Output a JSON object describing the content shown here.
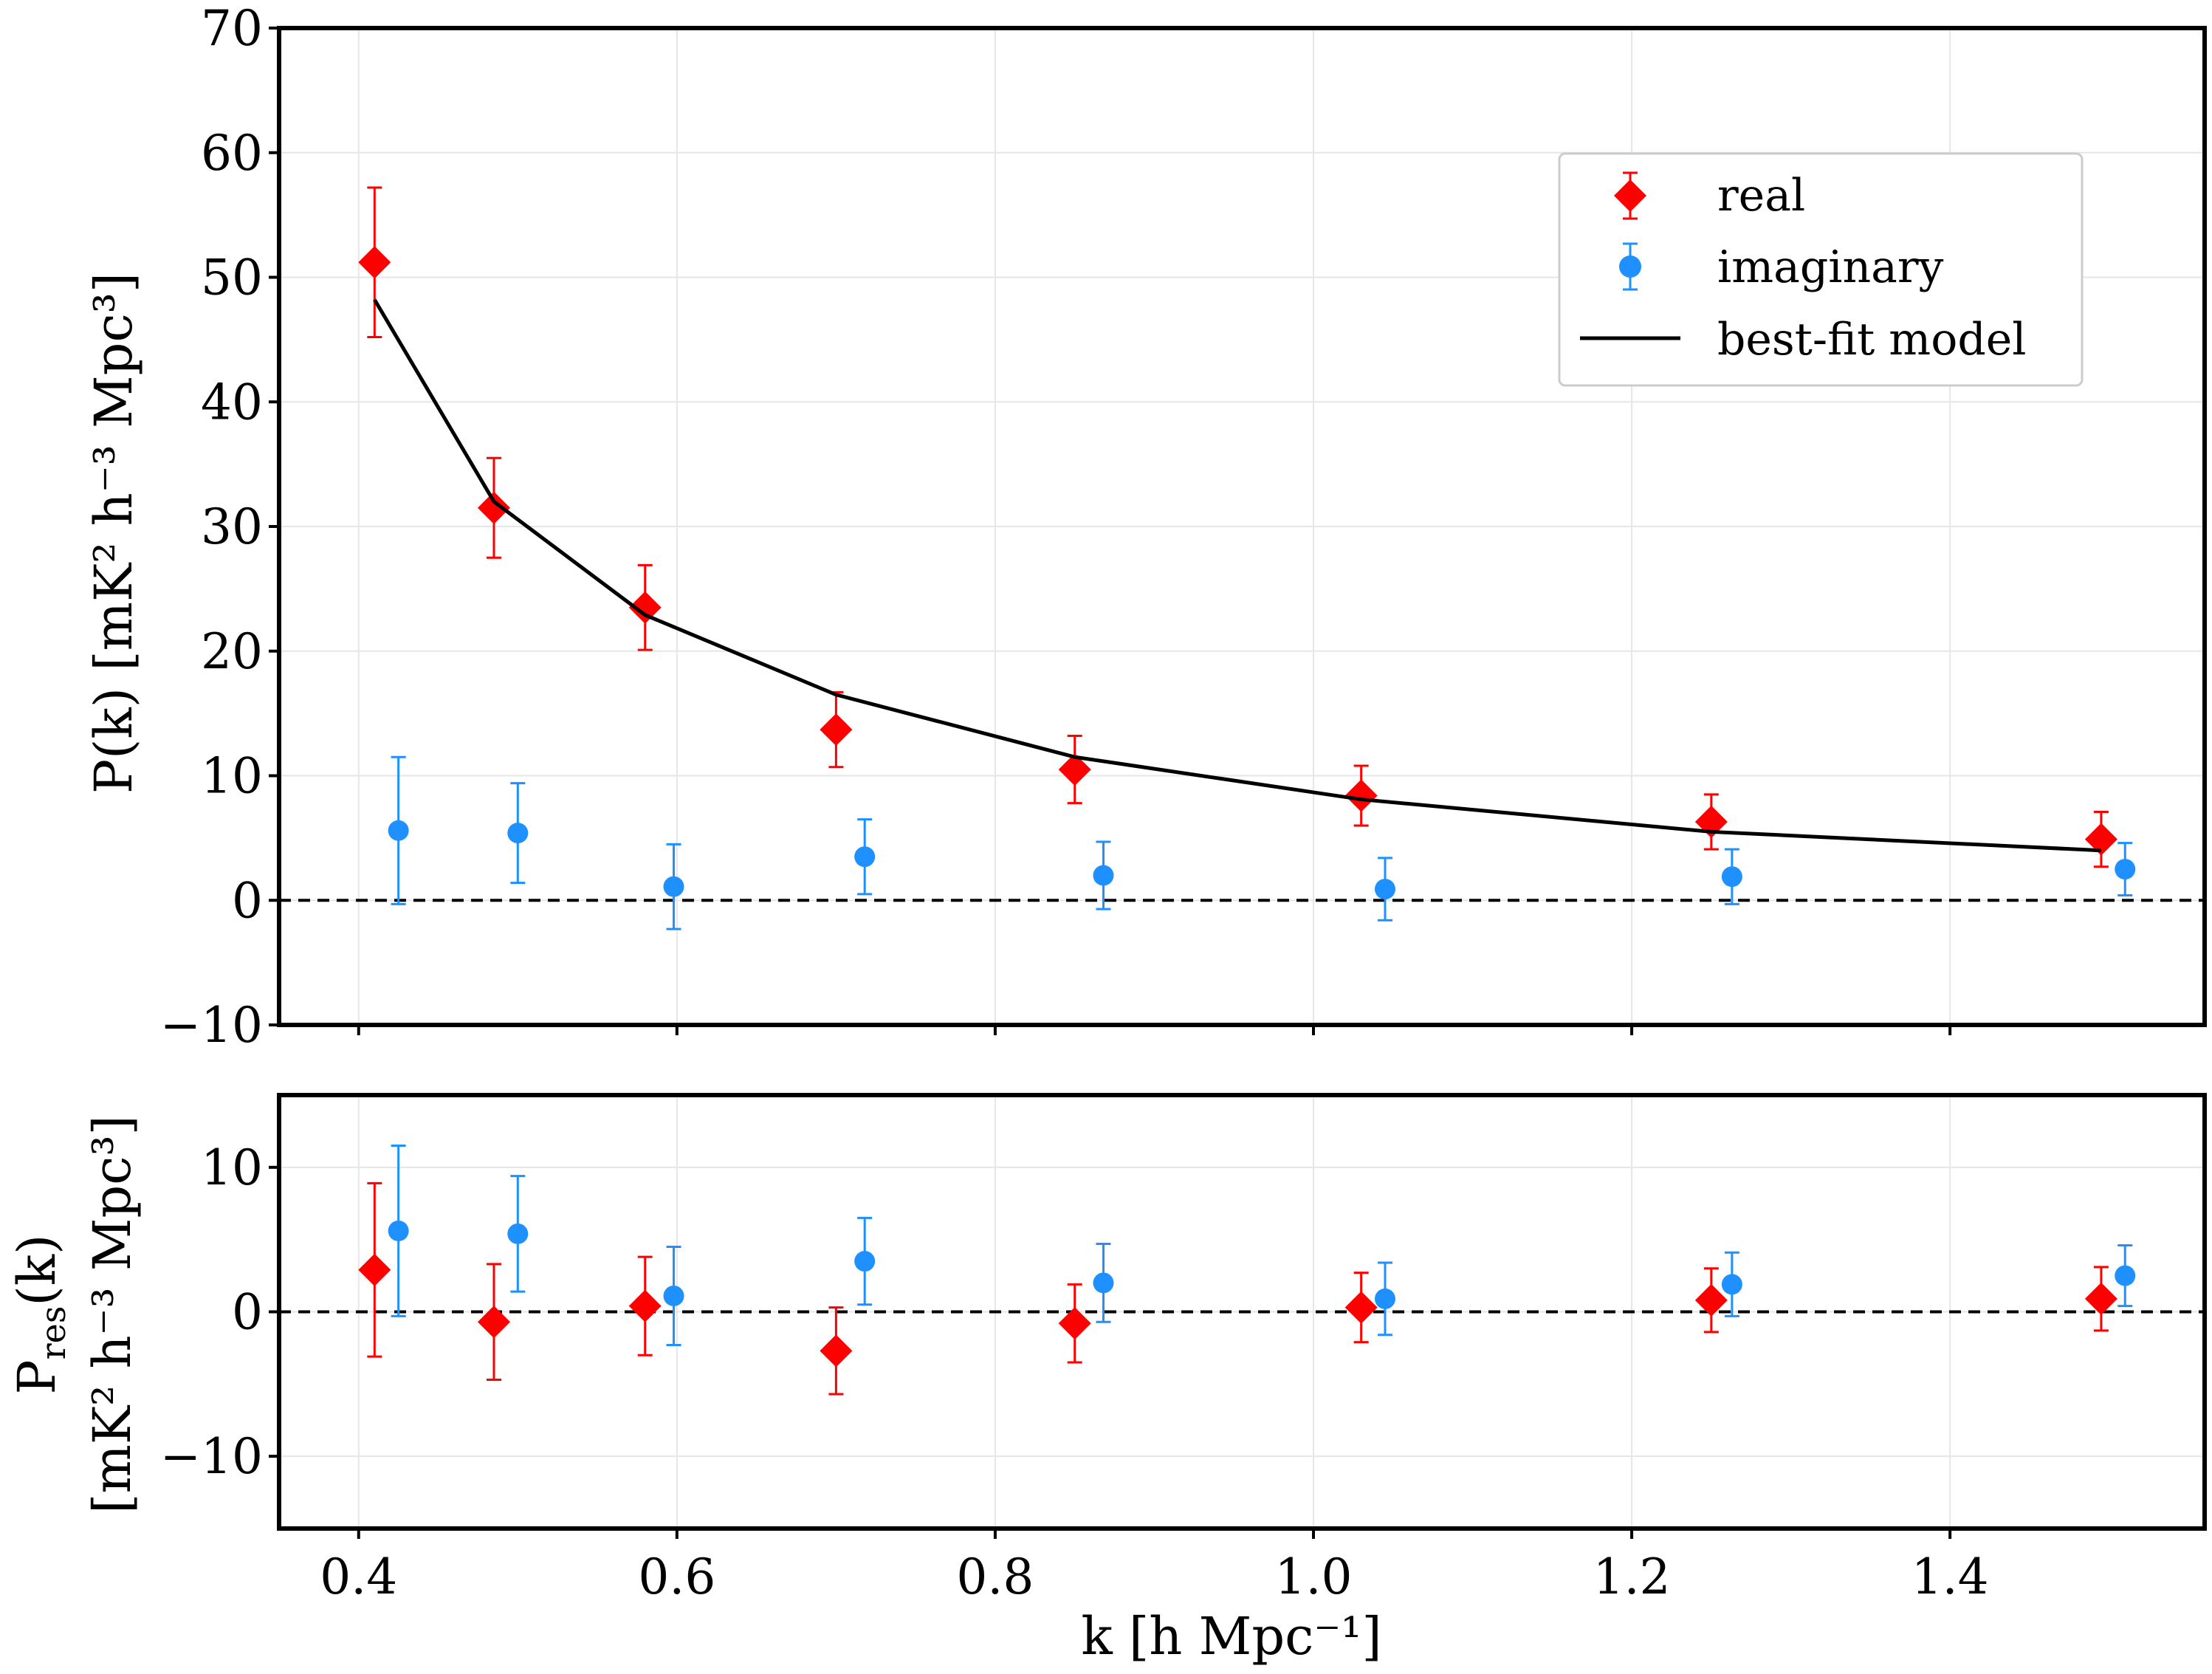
{
  "chart_data": [
    {
      "type": "scatter",
      "panel": "top",
      "ylabel": "P(k) [mK² h⁻³ Mpc³]",
      "xlim": [
        0.35,
        1.56
      ],
      "ylim": [
        -10,
        70
      ],
      "yticks": [
        -10,
        0,
        10,
        20,
        30,
        40,
        50,
        60,
        70
      ],
      "grid": true,
      "legend_placement": "upper-right",
      "reference_line": 0,
      "series": [
        {
          "name": "real",
          "marker": "diamond",
          "color": "#ff0000",
          "points": [
            {
              "x": 0.41,
              "y": 51.2,
              "err": 6.0
            },
            {
              "x": 0.485,
              "y": 31.5,
              "err": 4.0
            },
            {
              "x": 0.58,
              "y": 23.5,
              "err": 3.4
            },
            {
              "x": 0.7,
              "y": 13.7,
              "err": 3.0
            },
            {
              "x": 0.85,
              "y": 10.5,
              "err": 2.7
            },
            {
              "x": 1.03,
              "y": 8.4,
              "err": 2.4
            },
            {
              "x": 1.25,
              "y": 6.3,
              "err": 2.2
            },
            {
              "x": 1.495,
              "y": 4.9,
              "err": 2.2
            }
          ]
        },
        {
          "name": "imaginary",
          "marker": "circle",
          "color": "#1e90ff",
          "points": [
            {
              "x": 0.425,
              "y": 5.6,
              "err": 5.9
            },
            {
              "x": 0.5,
              "y": 5.4,
              "err": 4.0
            },
            {
              "x": 0.598,
              "y": 1.1,
              "err": 3.4
            },
            {
              "x": 0.718,
              "y": 3.5,
              "err": 3.0
            },
            {
              "x": 0.868,
              "y": 2.0,
              "err": 2.7
            },
            {
              "x": 1.045,
              "y": 0.9,
              "err": 2.5
            },
            {
              "x": 1.263,
              "y": 1.9,
              "err": 2.2
            },
            {
              "x": 1.51,
              "y": 2.5,
              "err": 2.1
            }
          ]
        },
        {
          "name": "best-fit model",
          "type": "line",
          "color": "#000000",
          "points": [
            {
              "x": 0.41,
              "y": 48.2
            },
            {
              "x": 0.485,
              "y": 32.0
            },
            {
              "x": 0.58,
              "y": 22.9
            },
            {
              "x": 0.7,
              "y": 16.5
            },
            {
              "x": 0.85,
              "y": 11.5
            },
            {
              "x": 1.03,
              "y": 8.1
            },
            {
              "x": 1.25,
              "y": 5.5
            },
            {
              "x": 1.495,
              "y": 4.0
            }
          ]
        }
      ]
    },
    {
      "type": "scatter",
      "panel": "bottom",
      "ylabel_line1": "P",
      "ylabel_sub": "res",
      "ylabel_line1_rest": "(k)",
      "ylabel_line2": "[mK² h⁻³ Mpc³]",
      "xlabel": "k [h Mpc⁻¹]",
      "xlim": [
        0.35,
        1.56
      ],
      "ylim": [
        -15,
        15
      ],
      "yticks": [
        -10,
        0,
        10
      ],
      "xticks": [
        0.4,
        0.6,
        0.8,
        1.0,
        1.2,
        1.4
      ],
      "xticklabels": [
        "0.4",
        "0.6",
        "0.8",
        "1.0",
        "1.2",
        "1.4"
      ],
      "grid": true,
      "reference_line": 0,
      "series": [
        {
          "name": "real",
          "marker": "diamond",
          "color": "#ff0000",
          "points": [
            {
              "x": 0.41,
              "y": 2.9,
              "err": 6.0
            },
            {
              "x": 0.485,
              "y": -0.7,
              "err": 4.0
            },
            {
              "x": 0.58,
              "y": 0.4,
              "err": 3.4
            },
            {
              "x": 0.7,
              "y": -2.7,
              "err": 3.0
            },
            {
              "x": 0.85,
              "y": -0.8,
              "err": 2.7
            },
            {
              "x": 1.03,
              "y": 0.3,
              "err": 2.4
            },
            {
              "x": 1.25,
              "y": 0.8,
              "err": 2.2
            },
            {
              "x": 1.495,
              "y": 0.9,
              "err": 2.2
            }
          ]
        },
        {
          "name": "imaginary",
          "marker": "circle",
          "color": "#1e90ff",
          "points": [
            {
              "x": 0.425,
              "y": 5.6,
              "err": 5.9
            },
            {
              "x": 0.5,
              "y": 5.4,
              "err": 4.0
            },
            {
              "x": 0.598,
              "y": 1.1,
              "err": 3.4
            },
            {
              "x": 0.718,
              "y": 3.5,
              "err": 3.0
            },
            {
              "x": 0.868,
              "y": 2.0,
              "err": 2.7
            },
            {
              "x": 1.045,
              "y": 0.9,
              "err": 2.5
            },
            {
              "x": 1.263,
              "y": 1.9,
              "err": 2.2
            },
            {
              "x": 1.51,
              "y": 2.5,
              "err": 2.1
            }
          ]
        }
      ]
    }
  ],
  "legend": {
    "items": [
      {
        "label": "real",
        "marker": "diamond",
        "color": "#ff0000"
      },
      {
        "label": "imaginary",
        "marker": "circle",
        "color": "#1e90ff"
      },
      {
        "label": "best-fit model",
        "marker": "line",
        "color": "#000000"
      }
    ]
  }
}
